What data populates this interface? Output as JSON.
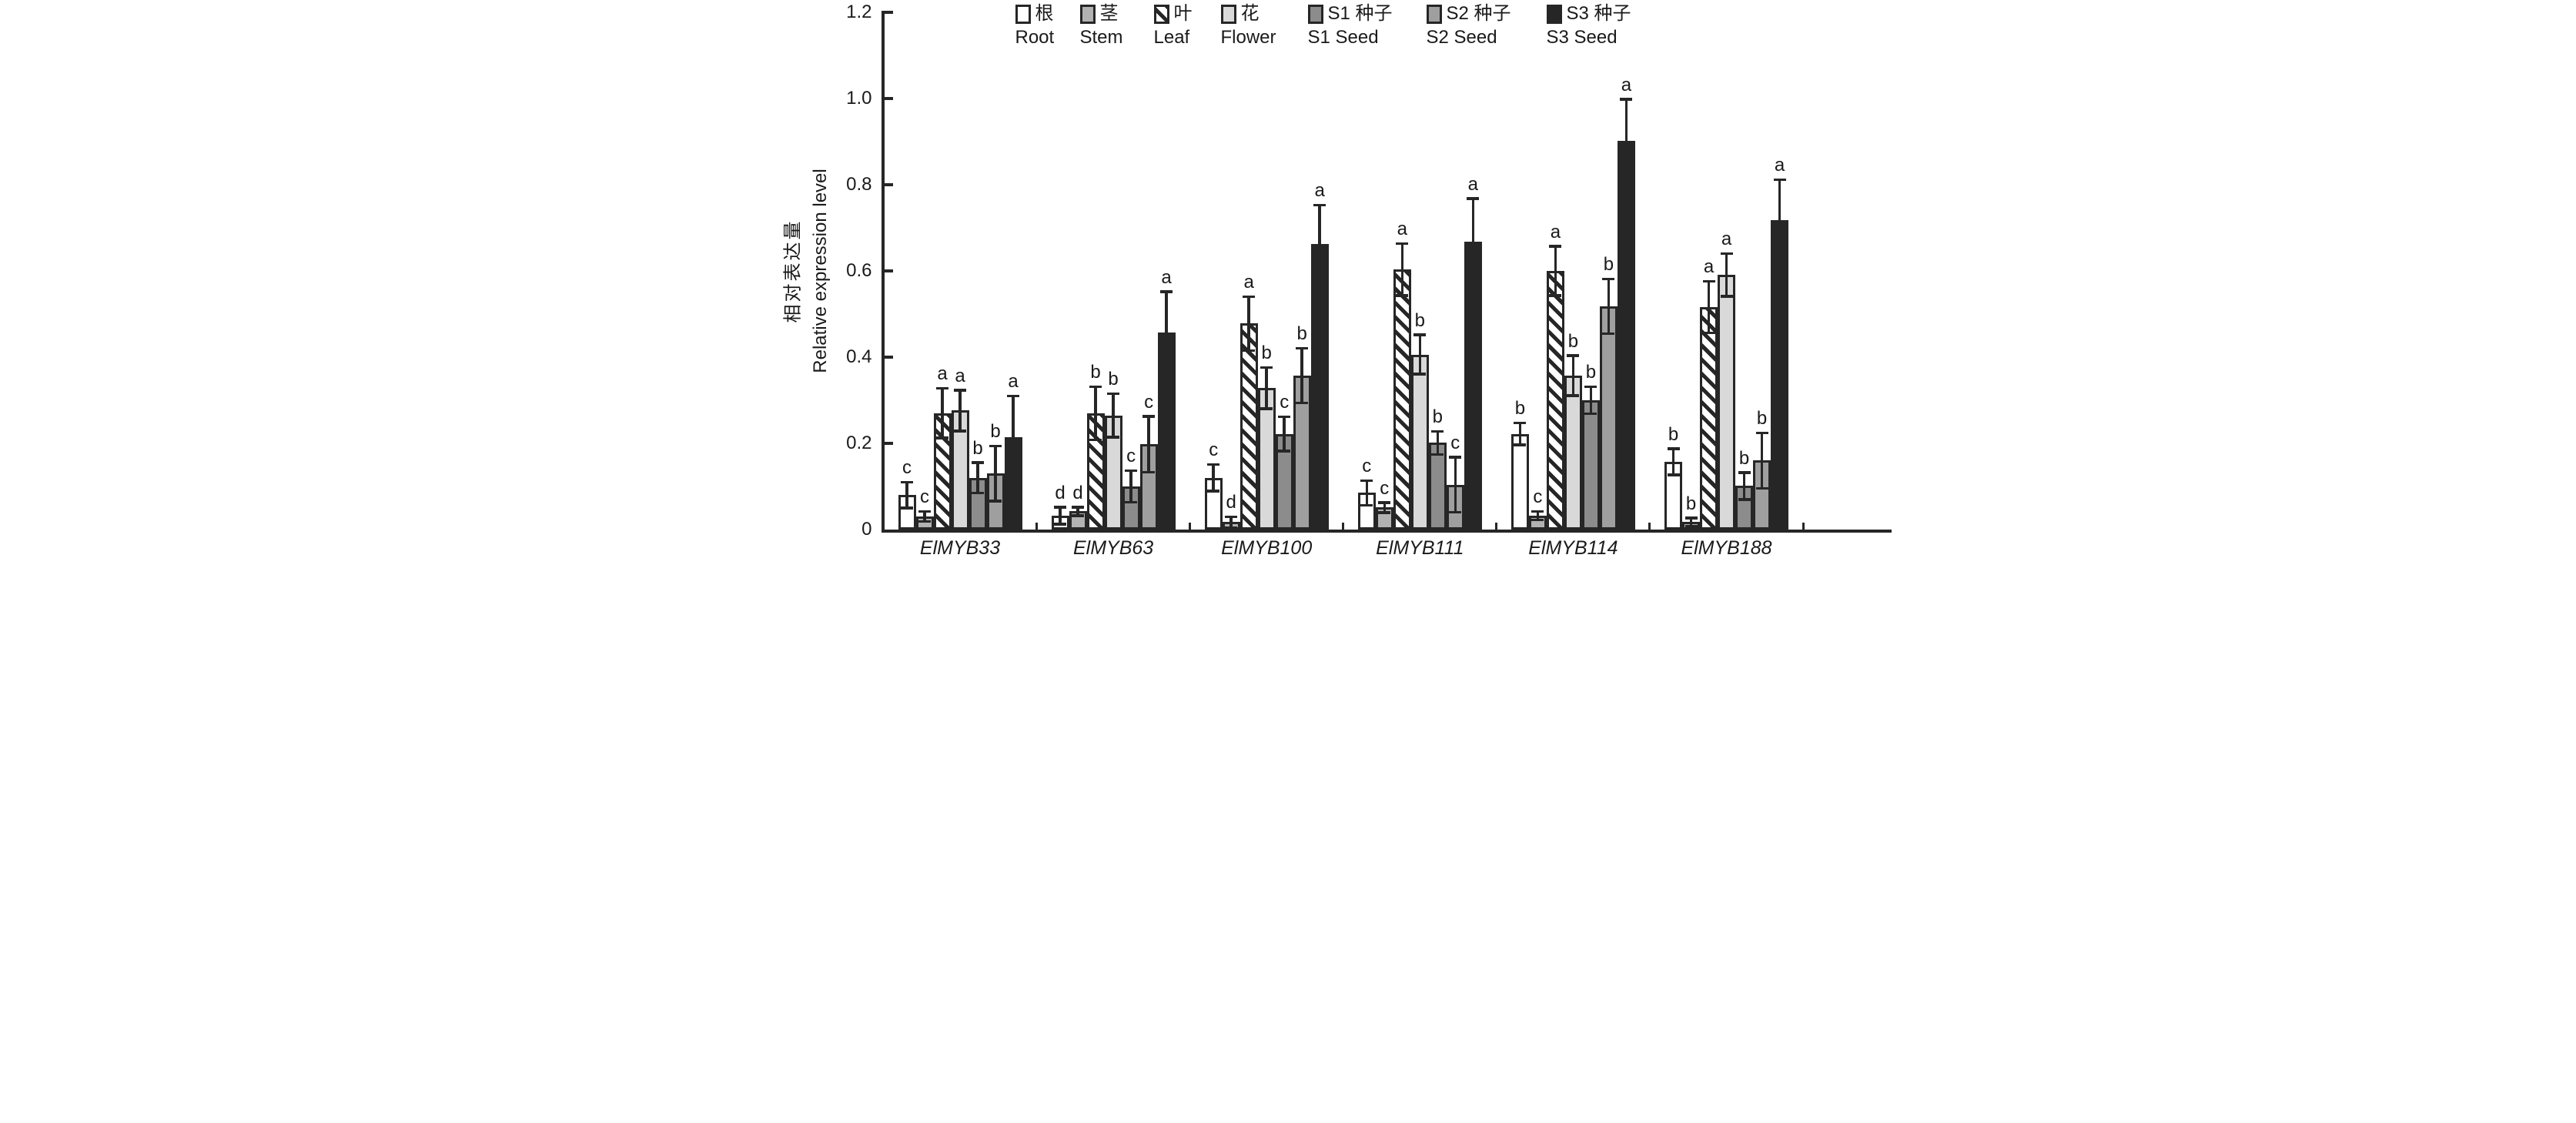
{
  "figure": {
    "background": "#ffffff",
    "stroke_color": "#262626"
  },
  "chart_data": {
    "type": "bar",
    "title": "",
    "ylabel_zh": "相对表达量",
    "ylabel_en": "Relative expression level",
    "xlabel": "",
    "ylim": [
      0,
      1.2
    ],
    "yticks": [
      0,
      0.2,
      0.4,
      0.6,
      0.8,
      1.0,
      1.2
    ],
    "ytick_labels": [
      "0",
      "0.2",
      "0.4",
      "0.6",
      "0.8",
      "1.0",
      "1.2"
    ],
    "grid": false,
    "legend_position": "top",
    "error_bars": "symmetric, letters above denote significance groups",
    "categories": [
      "ElMYB33",
      "ElMYB63",
      "ElMYB100",
      "ElMYB111",
      "ElMYB114",
      "ElMYB188"
    ],
    "series": [
      {
        "key": "root",
        "label_zh": "根",
        "label_en": "Root",
        "fill": "#ffffff",
        "hatch": false,
        "values": [
          0.08,
          0.032,
          0.12,
          0.085,
          0.222,
          0.157
        ],
        "errors": [
          0.03,
          0.02,
          0.031,
          0.029,
          0.026,
          0.031
        ],
        "letters": [
          "c",
          "d",
          "c",
          "c",
          "b",
          "b"
        ]
      },
      {
        "key": "stem",
        "label_zh": "茎",
        "label_en": "Stem",
        "fill": "#b2b2b2",
        "hatch": false,
        "values": [
          0.03,
          0.042,
          0.017,
          0.051,
          0.032,
          0.017
        ],
        "errors": [
          0.012,
          0.01,
          0.013,
          0.012,
          0.01,
          0.01
        ],
        "letters": [
          "c",
          "d",
          "d",
          "c",
          "c",
          "b"
        ]
      },
      {
        "key": "leaf",
        "label_zh": "叶",
        "label_en": "Leaf",
        "fill": "#ffffff",
        "hatch": true,
        "values": [
          0.27,
          0.27,
          0.478,
          0.603,
          0.6,
          0.516
        ],
        "errors": [
          0.058,
          0.062,
          0.063,
          0.061,
          0.058,
          0.06
        ],
        "letters": [
          "a",
          "b",
          "a",
          "a",
          "a",
          "a"
        ]
      },
      {
        "key": "flower",
        "label_zh": "花",
        "label_en": "Flower",
        "fill": "#d9d9d9",
        "hatch": false,
        "values": [
          0.276,
          0.265,
          0.328,
          0.406,
          0.357,
          0.591
        ],
        "errors": [
          0.048,
          0.051,
          0.048,
          0.046,
          0.047,
          0.05
        ],
        "letters": [
          "a",
          "b",
          "b",
          "b",
          "b",
          "a"
        ]
      },
      {
        "key": "s1-seed",
        "label_zh": "S1 种子",
        "label_en": "S1 Seed",
        "fill": "#8c8c8c",
        "hatch": false,
        "values": [
          0.12,
          0.1,
          0.222,
          0.201,
          0.3,
          0.101
        ],
        "errors": [
          0.036,
          0.037,
          0.04,
          0.027,
          0.032,
          0.032
        ],
        "letters": [
          "b",
          "c",
          "c",
          "b",
          "b",
          "b"
        ]
      },
      {
        "key": "s2-seed",
        "label_zh": "S2 种子",
        "label_en": "S2 Seed",
        "fill": "#9f9f9f",
        "hatch": false,
        "values": [
          0.13,
          0.198,
          0.357,
          0.104,
          0.518,
          0.16
        ],
        "errors": [
          0.064,
          0.065,
          0.064,
          0.064,
          0.064,
          0.065
        ],
        "letters": [
          "b",
          "c",
          "b",
          "c",
          "b",
          "b"
        ]
      },
      {
        "key": "s3-seed",
        "label_zh": "S3 种子",
        "label_en": "S3 Seed",
        "fill": "#262626",
        "hatch": false,
        "values": [
          0.215,
          0.458,
          0.662,
          0.668,
          0.901,
          0.717
        ],
        "errors": [
          0.095,
          0.094,
          0.091,
          0.1,
          0.098,
          0.095
        ],
        "letters": [
          "a",
          "a",
          "a",
          "a",
          "a",
          "a"
        ]
      }
    ]
  }
}
